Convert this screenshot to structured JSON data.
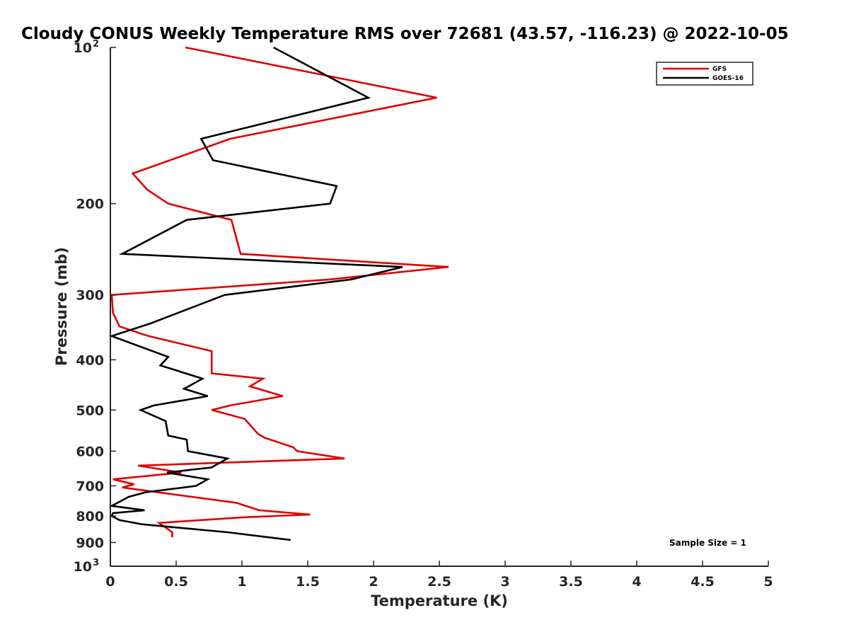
{
  "chart_data": {
    "type": "line",
    "title": "Cloudy CONUS Weekly Temperature RMS over 72681 (43.57, -116.23) @ 2022-10-05",
    "xlabel": "Temperature (K)",
    "ylabel": "Pressure (mb)",
    "xlim": [
      0,
      5
    ],
    "ylim": [
      100,
      1000
    ],
    "y_scale": "log",
    "y_reversed": true,
    "x_ticks": [
      "0",
      "0.5",
      "1",
      "1.5",
      "2",
      "2.5",
      "3",
      "3.5",
      "4",
      "4.5",
      "5"
    ],
    "y_ticks": [
      {
        "value": 100,
        "label": "10",
        "exp": "2"
      },
      {
        "value": 200,
        "label": "200"
      },
      {
        "value": 300,
        "label": "300"
      },
      {
        "value": 400,
        "label": "400"
      },
      {
        "value": 500,
        "label": "500"
      },
      {
        "value": 600,
        "label": "600"
      },
      {
        "value": 700,
        "label": "700"
      },
      {
        "value": 800,
        "label": "800"
      },
      {
        "value": 900,
        "label": "900"
      },
      {
        "value": 1000,
        "label": "10",
        "exp": "3"
      }
    ],
    "legend_position": "top-right",
    "grid": false,
    "annotation": "Sample Size = 1",
    "series": [
      {
        "name": "GFS",
        "color": "#e00000",
        "points": [
          [
            0.57,
            100
          ],
          [
            2.48,
            125
          ],
          [
            0.91,
            150
          ],
          [
            0.17,
            175
          ],
          [
            0.28,
            188
          ],
          [
            0.44,
            200
          ],
          [
            0.92,
            215
          ],
          [
            0.99,
            250
          ],
          [
            2.57,
            265
          ],
          [
            1.67,
            280
          ],
          [
            0.01,
            300
          ],
          [
            0.02,
            325
          ],
          [
            0.07,
            345
          ],
          [
            0.29,
            360
          ],
          [
            0.77,
            385
          ],
          [
            0.77,
            425
          ],
          [
            1.16,
            435
          ],
          [
            1.06,
            450
          ],
          [
            1.31,
            470
          ],
          [
            0.91,
            490
          ],
          [
            0.77,
            500
          ],
          [
            1.02,
            520
          ],
          [
            1.12,
            555
          ],
          [
            1.17,
            565
          ],
          [
            1.39,
            590
          ],
          [
            1.42,
            600
          ],
          [
            1.78,
            620
          ],
          [
            0.21,
            640
          ],
          [
            0.54,
            660
          ],
          [
            0.02,
            680
          ],
          [
            0.18,
            695
          ],
          [
            0.09,
            705
          ],
          [
            0.96,
            755
          ],
          [
            1.13,
            780
          ],
          [
            1.52,
            795
          ],
          [
            1.01,
            805
          ],
          [
            0.37,
            825
          ],
          [
            0.47,
            860
          ],
          [
            0.47,
            880
          ]
        ]
      },
      {
        "name": "GOES-16",
        "color": "#000000",
        "points": [
          [
            1.24,
            100
          ],
          [
            1.96,
            125
          ],
          [
            0.69,
            150
          ],
          [
            0.78,
            165
          ],
          [
            1.72,
            185
          ],
          [
            1.67,
            200
          ],
          [
            0.58,
            215
          ],
          [
            0.09,
            250
          ],
          [
            2.22,
            265
          ],
          [
            1.83,
            280
          ],
          [
            0.87,
            300
          ],
          [
            0.31,
            340
          ],
          [
            0.01,
            360
          ],
          [
            0.44,
            395
          ],
          [
            0.38,
            410
          ],
          [
            0.7,
            435
          ],
          [
            0.56,
            455
          ],
          [
            0.74,
            470
          ],
          [
            0.33,
            490
          ],
          [
            0.23,
            500
          ],
          [
            0.42,
            525
          ],
          [
            0.44,
            560
          ],
          [
            0.58,
            570
          ],
          [
            0.59,
            600
          ],
          [
            0.89,
            620
          ],
          [
            0.77,
            645
          ],
          [
            0.43,
            660
          ],
          [
            0.74,
            680
          ],
          [
            0.65,
            700
          ],
          [
            0.27,
            720
          ],
          [
            0.14,
            735
          ],
          [
            0.01,
            765
          ],
          [
            0.26,
            780
          ],
          [
            0.02,
            790
          ],
          [
            0.01,
            800
          ],
          [
            0.07,
            815
          ],
          [
            0.24,
            830
          ],
          [
            0.89,
            860
          ],
          [
            1.37,
            890
          ]
        ]
      }
    ]
  }
}
